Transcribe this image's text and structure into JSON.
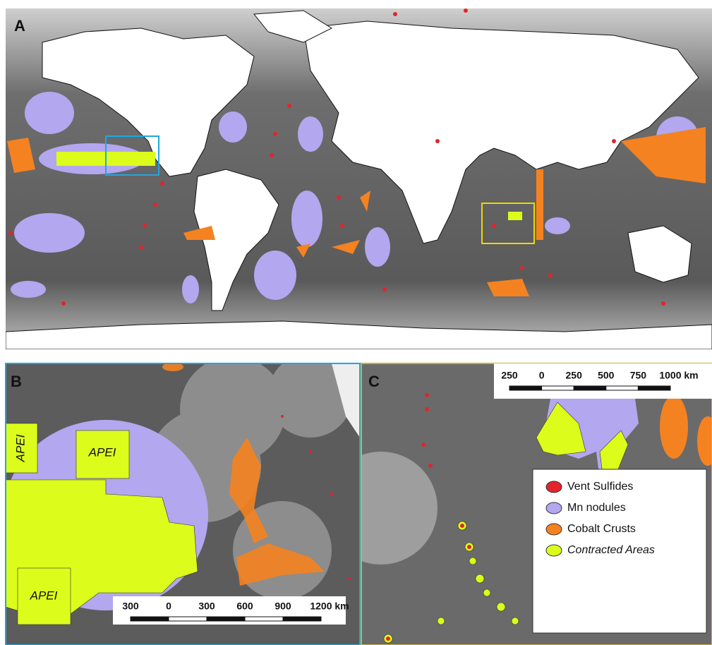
{
  "panels": {
    "a": {
      "label": "A"
    },
    "b": {
      "label": "B",
      "apei_labels": [
        "APEI",
        "APEI",
        "APEI"
      ],
      "scale_bar": [
        "300",
        "0",
        "300",
        "600",
        "900",
        "1200 km"
      ]
    },
    "c": {
      "label": "C",
      "scale_bar": [
        "250",
        "0",
        "250",
        "500",
        "750",
        "1000 km"
      ]
    }
  },
  "legend": [
    {
      "name": "Vent Sulfides",
      "color": "#e3242b"
    },
    {
      "name": "Mn nodules",
      "color": "#b3a7ef"
    },
    {
      "name": "Cobalt Crusts",
      "color": "#f58220"
    },
    {
      "name": "Contracted Areas",
      "color": "#dcfc1c"
    }
  ]
}
